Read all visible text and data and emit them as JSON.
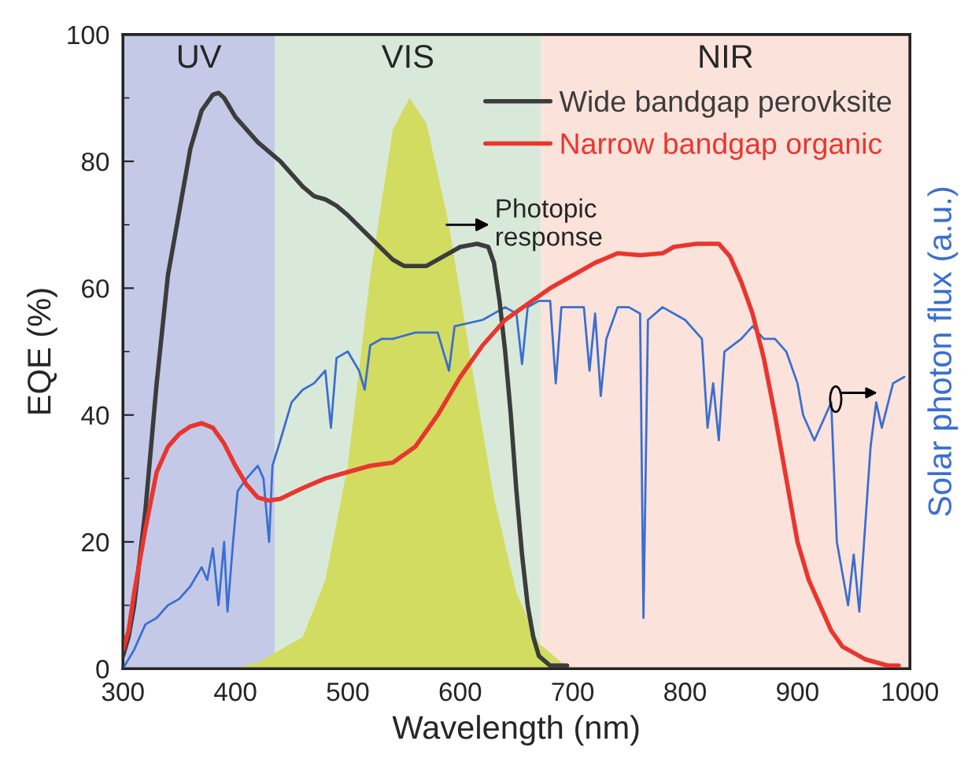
{
  "chart_data": {
    "type": "line",
    "xlabel": "Wavelength (nm)",
    "ylabel": "EQE (%)",
    "y2label": "Solar photon flux (a.u.)",
    "xlim": [
      300,
      1000
    ],
    "xticks": [
      300,
      400,
      500,
      600,
      700,
      800,
      900,
      1000
    ],
    "ylim": [
      0,
      100
    ],
    "yticks": [
      0,
      20,
      40,
      60,
      80,
      100
    ],
    "grid": false,
    "legend": "top right",
    "bands": [
      {
        "axis": "x",
        "from": 300,
        "to": 435,
        "label": "UV",
        "color": "#c5c9e8"
      },
      {
        "axis": "x",
        "from": 435,
        "to": 672,
        "label": "VIS",
        "color": "#d9e9d9"
      },
      {
        "axis": "x",
        "from": 672,
        "to": 1000,
        "label": "NIR",
        "color": "#fbe3db"
      }
    ],
    "annotations": [
      {
        "text": "Photopic\nresponse",
        "x": 588,
        "y": 70
      }
    ],
    "series": [
      {
        "type": "area",
        "color": "#d2dc60",
        "x": [
          400,
          420,
          435,
          460,
          480,
          500,
          520,
          540,
          555,
          570,
          590,
          610,
          630,
          650,
          670,
          690,
          700
        ],
        "values": [
          0,
          1,
          2.5,
          5,
          14,
          32,
          62,
          85,
          90,
          86,
          70,
          48,
          27,
          12,
          4,
          1,
          0
        ]
      },
      {
        "color": "#3a6fd0",
        "x": [
          300,
          310,
          320,
          330,
          340,
          350,
          360,
          370,
          375,
          380,
          385,
          390,
          393,
          398,
          402,
          410,
          420,
          425,
          430,
          433,
          440,
          450,
          460,
          470,
          480,
          485,
          490,
          500,
          510,
          515,
          520,
          530,
          540,
          560,
          580,
          590,
          595,
          620,
          640,
          650,
          655,
          660,
          670,
          680,
          685,
          690,
          700,
          710,
          715,
          720,
          725,
          730,
          740,
          750,
          760,
          763,
          767,
          780,
          800,
          815,
          820,
          825,
          830,
          835,
          850,
          860,
          870,
          880,
          890,
          900,
          905,
          915,
          925,
          930,
          935,
          940,
          945,
          950,
          955,
          960,
          965,
          970,
          975,
          985,
          995
        ],
        "values": [
          0,
          3,
          7,
          8,
          10,
          11,
          13,
          16,
          14,
          19,
          10,
          20,
          9,
          20,
          28,
          30,
          32,
          30,
          20,
          32,
          36,
          42,
          44,
          45,
          47,
          38,
          49,
          50,
          47,
          44,
          51,
          52,
          52,
          53,
          53,
          47,
          54,
          55,
          57,
          56,
          48,
          57,
          58,
          58,
          45,
          57,
          57,
          57,
          47,
          56,
          43,
          52,
          57,
          57,
          56,
          8,
          55,
          57,
          55,
          52,
          38,
          45,
          36,
          50,
          52,
          54,
          52,
          52,
          50,
          45,
          40,
          36,
          40,
          42,
          20,
          15,
          10,
          18,
          9,
          22,
          35,
          42,
          38,
          45,
          46
        ]
      },
      {
        "name": "Wide bandgap perovksite",
        "color": "#3c3c3c",
        "x": [
          300,
          305,
          310,
          320,
          330,
          340,
          350,
          360,
          370,
          380,
          385,
          390,
          400,
          420,
          440,
          460,
          470,
          480,
          490,
          500,
          520,
          540,
          550,
          570,
          580,
          600,
          615,
          625,
          630,
          635,
          640,
          645,
          650,
          655,
          660,
          665,
          670,
          680,
          695
        ],
        "values": [
          2,
          5,
          10,
          25,
          45,
          62,
          72,
          82,
          88,
          90.5,
          90.8,
          90,
          87,
          83,
          80,
          76,
          74.5,
          74,
          73,
          71.5,
          68,
          64.5,
          63.5,
          63.5,
          64.5,
          66.5,
          67,
          66.5,
          64,
          58,
          50,
          40,
          28,
          18,
          10,
          5,
          2,
          0.5,
          0.5
        ]
      },
      {
        "name": "Narrow bandgap organic",
        "color": "#e8362e",
        "x": [
          300,
          305,
          310,
          320,
          330,
          340,
          350,
          360,
          370,
          380,
          390,
          400,
          410,
          420,
          430,
          440,
          460,
          480,
          500,
          520,
          540,
          560,
          580,
          600,
          620,
          640,
          660,
          680,
          700,
          720,
          740,
          760,
          780,
          790,
          810,
          830,
          840,
          850,
          860,
          870,
          880,
          890,
          900,
          910,
          920,
          930,
          940,
          960,
          980,
          990
        ],
        "values": [
          3,
          6,
          12,
          22,
          31,
          35,
          37,
          38.2,
          38.7,
          38,
          35.5,
          32,
          29,
          27,
          26.5,
          26.8,
          28.5,
          30,
          31,
          32,
          32.5,
          35,
          40,
          46,
          51,
          55,
          57.5,
          60,
          62,
          64,
          65.5,
          65.2,
          65.5,
          66.5,
          67,
          67,
          65,
          61,
          56,
          49,
          40,
          30,
          20,
          14,
          10,
          6,
          3.5,
          1.5,
          0.5,
          0.5
        ]
      }
    ]
  }
}
